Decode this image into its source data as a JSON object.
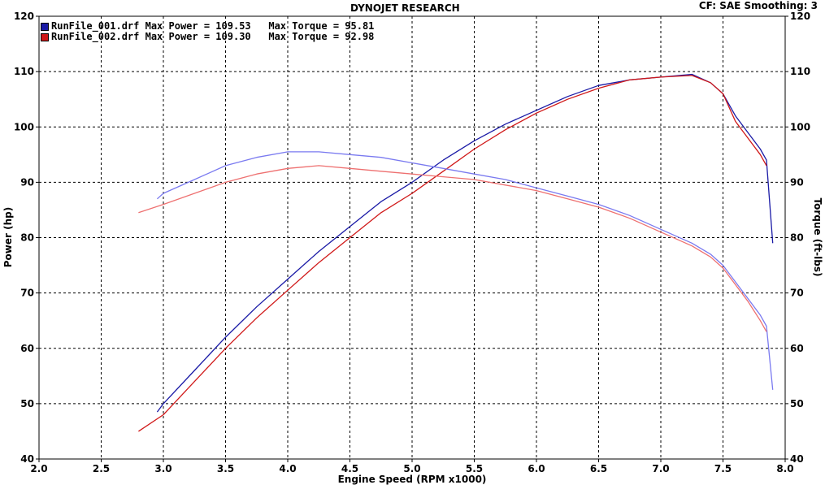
{
  "header": {
    "title": "DYNOJET RESEARCH",
    "settings": "CF: SAE  Smoothing: 3"
  },
  "legend": [
    {
      "file": "RunFile_001.drf",
      "power_label": "Max Power = 109.53",
      "torque_label": "Max Torque = 95.81",
      "color": "#1a1aa6"
    },
    {
      "file": "RunFile_002.drf",
      "power_label": "Max Power = 109.30",
      "torque_label": "Max Torque = 92.98",
      "color": "#d01818"
    }
  ],
  "chart_data": {
    "type": "line",
    "title": "DYNOJET RESEARCH",
    "xlabel": "Engine Speed (RPM x1000)",
    "ylabel_left": "Power (hp)",
    "ylabel_right": "Torque (ft-lbs)",
    "xlim": [
      2.0,
      8.0
    ],
    "ylim": [
      40,
      120
    ],
    "x_ticks": [
      "2.0",
      "2.5",
      "3.0",
      "3.5",
      "4.0",
      "4.5",
      "5.0",
      "5.5",
      "6.0",
      "6.5",
      "7.0",
      "7.5",
      "8.0"
    ],
    "y_ticks": [
      "40",
      "50",
      "60",
      "70",
      "80",
      "90",
      "100",
      "110",
      "120"
    ],
    "grid": true,
    "series": [
      {
        "name": "RunFile_001.drf Power",
        "color": "#1a1aa6",
        "x": [
          2.95,
          3.0,
          3.25,
          3.5,
          3.75,
          4.0,
          4.25,
          4.5,
          4.75,
          5.0,
          5.25,
          5.5,
          5.75,
          6.0,
          6.25,
          6.5,
          6.75,
          7.0,
          7.25,
          7.4,
          7.5,
          7.6,
          7.7,
          7.8,
          7.85,
          7.9
        ],
        "y": [
          48.5,
          50,
          56,
          62,
          67.5,
          72.5,
          77.5,
          82,
          86.5,
          90,
          94,
          97.5,
          100.5,
          103,
          105.5,
          107.5,
          108.5,
          109,
          109.5,
          108,
          106,
          102,
          99,
          96,
          94,
          79
        ]
      },
      {
        "name": "RunFile_002.drf Power",
        "color": "#d01818",
        "x": [
          2.8,
          3.0,
          3.25,
          3.5,
          3.75,
          4.0,
          4.25,
          4.5,
          4.75,
          5.0,
          5.25,
          5.5,
          5.75,
          6.0,
          6.25,
          6.5,
          6.75,
          7.0,
          7.25,
          7.4,
          7.5,
          7.6,
          7.7,
          7.8,
          7.85
        ],
        "y": [
          45,
          48,
          54,
          60,
          65.5,
          70.5,
          75.5,
          80,
          84.5,
          88,
          92,
          96,
          99.5,
          102.5,
          105,
          107,
          108.5,
          109,
          109.3,
          108,
          106,
          101,
          98,
          95,
          93
        ]
      },
      {
        "name": "RunFile_001.drf Torque",
        "color": "#7a7af0",
        "x": [
          2.95,
          3.0,
          3.25,
          3.5,
          3.75,
          4.0,
          4.25,
          4.5,
          4.75,
          5.0,
          5.25,
          5.5,
          5.75,
          6.0,
          6.25,
          6.5,
          6.75,
          7.0,
          7.25,
          7.4,
          7.5,
          7.6,
          7.7,
          7.8,
          7.85,
          7.9
        ],
        "y": [
          87,
          88,
          90.5,
          93,
          94.5,
          95.5,
          95.5,
          95,
          94.5,
          93.5,
          92.5,
          91.5,
          90.5,
          89,
          87.5,
          86,
          84,
          81.5,
          79,
          77,
          75,
          72,
          69,
          66,
          64,
          52.5
        ]
      },
      {
        "name": "RunFile_002.drf Torque",
        "color": "#ee7070",
        "x": [
          2.8,
          3.0,
          3.25,
          3.5,
          3.75,
          4.0,
          4.25,
          4.5,
          4.75,
          5.0,
          5.25,
          5.5,
          5.75,
          6.0,
          6.25,
          6.5,
          6.75,
          7.0,
          7.25,
          7.4,
          7.5,
          7.6,
          7.7,
          7.8,
          7.85
        ],
        "y": [
          84.5,
          86,
          88,
          90,
          91.5,
          92.5,
          93,
          92.5,
          92,
          91.5,
          91,
          90.5,
          89.5,
          88.5,
          87,
          85.5,
          83.5,
          81,
          78.5,
          76.5,
          74.5,
          71.5,
          68.5,
          65,
          63
        ]
      }
    ]
  }
}
